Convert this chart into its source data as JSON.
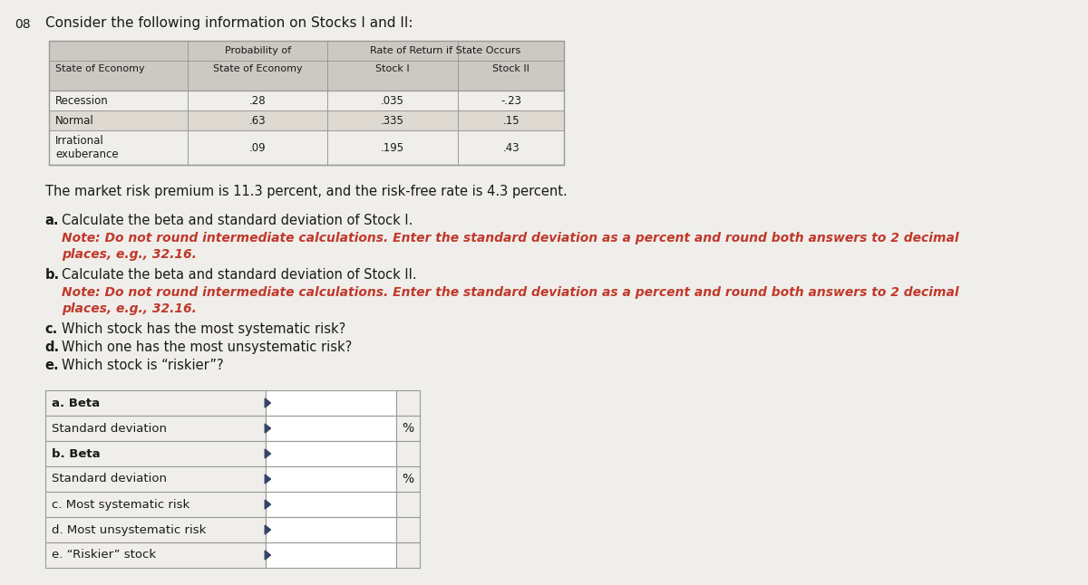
{
  "title": "Consider the following information on Stocks I and II:",
  "page_num": "08",
  "table1_data": [
    [
      "Recession",
      ".28",
      ".035",
      "-.23"
    ],
    [
      "Normal",
      ".63",
      ".335",
      ".15"
    ],
    [
      "Irrational\nexuberance",
      ".09",
      ".195",
      ".43"
    ]
  ],
  "market_text": "The market risk premium is 11.3 percent, and the risk-free rate is 4.3 percent.",
  "q_a_label": "a.",
  "q_a_text": "Calculate the beta and standard deviation of Stock I.",
  "q_a_note1": "Note: Do not round intermediate calculations. Enter the standard deviation as a percent and round both answers to 2 decimal",
  "q_a_note2": "places, e.g., 32.16.",
  "q_b_label": "b.",
  "q_b_text": "Calculate the beta and standard deviation of Stock II.",
  "q_b_note1": "Note: Do not round intermediate calculations. Enter the standard deviation as a percent and round both answers to 2 decimal",
  "q_b_note2": "places, e.g., 32.16.",
  "q_c_label": "c.",
  "q_c_text": "Which stock has the most systematic risk?",
  "q_d_label": "d.",
  "q_d_text": "Which one has the most unsystematic risk?",
  "q_e_label": "e.",
  "q_e_text": "Which stock is “riskier”?",
  "answer_rows": [
    {
      "label": "a. Beta",
      "bold": true,
      "has_percent": false
    },
    {
      "label": "   Standard deviation",
      "bold": false,
      "has_percent": true
    },
    {
      "label": "b. Beta",
      "bold": true,
      "has_percent": false
    },
    {
      "label": "   Standard deviation",
      "bold": false,
      "has_percent": true
    },
    {
      "label": "c. Most systematic risk",
      "bold": false,
      "has_percent": false
    },
    {
      "label": "d. Most unsystematic risk",
      "bold": false,
      "has_percent": false
    },
    {
      "label": "e. “Riskier” stock",
      "bold": false,
      "has_percent": false
    }
  ],
  "bg_color": "#f0eeeb",
  "table_header_bg": "#cbc9c2",
  "table_row_light": "#f0eeeb",
  "table_row_dark": "#dedad2",
  "table_border_color": "#999999",
  "note_color": "#c0392b",
  "text_color": "#1a1a1a",
  "answer_label_bg": "#f0eeeb",
  "answer_input_bg": "#e8e6e2",
  "answer_border": "#5a7ab0"
}
